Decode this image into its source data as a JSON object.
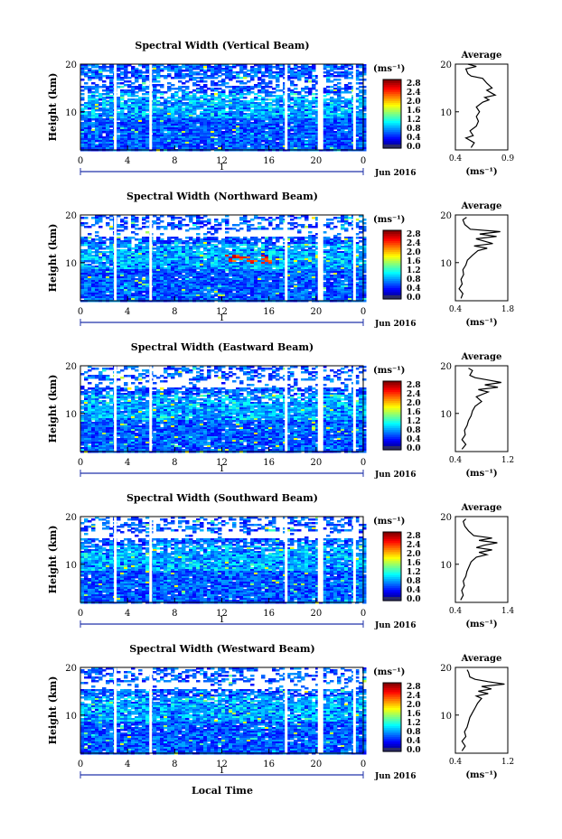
{
  "shared": {
    "ylabel": "Height (km)",
    "xlabel": "Local Time",
    "x_ticks": [
      "0",
      "4",
      "8",
      "12",
      "16",
      "20",
      "0"
    ],
    "day_label": "1",
    "month_label": "Jun 2016",
    "colorbar_unit": "(ms⁻¹)",
    "colorbar_ticks": [
      "2.8",
      "2.4",
      "2.0",
      "1.6",
      "1.2",
      "0.8",
      "0.4",
      "0.0"
    ],
    "avg_title": "Average",
    "avg_unit": "(ms⁻¹)",
    "gap_hours": [
      3,
      6,
      17.5,
      20.3,
      23.3
    ]
  },
  "chart_data": [
    {
      "type": "heatmap",
      "title": "Spectral Width (Vertical Beam)",
      "x_range_hours": [
        0,
        24
      ],
      "ylim_km": [
        2,
        20
      ],
      "y_ticks": [
        "20",
        "10"
      ],
      "clim": [
        0,
        3.0
      ],
      "avg_profile": {
        "type": "line",
        "title": "Average",
        "xlim": [
          0.4,
          0.9
        ],
        "x_ticks": [
          "0.4",
          "0.9"
        ],
        "y_ticks": [
          "20",
          "10"
        ],
        "height_km": [
          2.5,
          3.5,
          4.5,
          5,
          6,
          7,
          8,
          9,
          10,
          11,
          12,
          12.5,
          13,
          13.5,
          14,
          14.5,
          15,
          16,
          17,
          17.5,
          18,
          19,
          19.5,
          20
        ],
        "width_ms": [
          0.55,
          0.58,
          0.5,
          0.57,
          0.54,
          0.6,
          0.62,
          0.6,
          0.63,
          0.6,
          0.66,
          0.72,
          0.68,
          0.78,
          0.74,
          0.7,
          0.75,
          0.7,
          0.66,
          0.55,
          0.52,
          0.5,
          0.6,
          0.52
        ]
      }
    },
    {
      "type": "heatmap",
      "title": "Spectral Width (Northward Beam)",
      "x_range_hours": [
        0,
        24
      ],
      "ylim_km": [
        2,
        20
      ],
      "y_ticks": [
        "20",
        "10"
      ],
      "clim": [
        0,
        3.0
      ],
      "avg_profile": {
        "type": "line",
        "title": "Average",
        "xlim": [
          0.4,
          1.8
        ],
        "x_ticks": [
          "0.4",
          "1.8"
        ],
        "y_ticks": [
          "20",
          "10"
        ],
        "height_km": [
          2.5,
          3.5,
          4.5,
          5.5,
          6.5,
          7.5,
          8.5,
          9.5,
          10.5,
          11.5,
          12.5,
          13,
          13.5,
          14,
          15,
          15.5,
          16,
          16.5,
          17,
          18,
          19,
          19.5
        ],
        "width_ms": [
          0.55,
          0.6,
          0.5,
          0.58,
          0.55,
          0.62,
          0.6,
          0.68,
          0.72,
          0.85,
          1.0,
          1.25,
          0.9,
          1.4,
          0.95,
          1.5,
          1.05,
          1.6,
          0.8,
          0.65,
          0.6,
          0.7
        ]
      }
    },
    {
      "type": "heatmap",
      "title": "Spectral Width (Eastward Beam)",
      "x_range_hours": [
        0,
        24
      ],
      "ylim_km": [
        2,
        20
      ],
      "y_ticks": [
        "20",
        "10"
      ],
      "clim": [
        0,
        3.0
      ],
      "avg_profile": {
        "type": "line",
        "title": "Average",
        "xlim": [
          0.4,
          1.2
        ],
        "x_ticks": [
          "0.4",
          "1.2"
        ],
        "y_ticks": [
          "20",
          "10"
        ],
        "height_km": [
          2.5,
          3.5,
          4.5,
          5.5,
          6.5,
          7.5,
          8.5,
          9.5,
          10.5,
          11.5,
          12.5,
          13.5,
          14.5,
          15,
          15.5,
          16,
          16.5,
          17,
          17.5,
          18,
          19,
          19.5
        ],
        "width_ms": [
          0.5,
          0.56,
          0.5,
          0.55,
          0.54,
          0.58,
          0.6,
          0.64,
          0.66,
          0.7,
          0.8,
          0.72,
          0.9,
          0.75,
          1.05,
          0.85,
          1.1,
          0.9,
          0.7,
          0.62,
          0.66,
          0.6
        ]
      }
    },
    {
      "type": "heatmap",
      "title": "Spectral Width (Southward Beam)",
      "x_range_hours": [
        0,
        24
      ],
      "ylim_km": [
        2,
        20
      ],
      "y_ticks": [
        "20",
        "10"
      ],
      "clim": [
        0,
        3.0
      ],
      "avg_profile": {
        "type": "line",
        "title": "Average",
        "xlim": [
          0.4,
          1.4
        ],
        "x_ticks": [
          "0.4",
          "1.4"
        ],
        "y_ticks": [
          "20",
          "10"
        ],
        "height_km": [
          2.5,
          3.5,
          4.5,
          5.5,
          6.5,
          7.5,
          8.5,
          9.5,
          10.5,
          11.5,
          12,
          12.5,
          13,
          13.5,
          14,
          14.5,
          15,
          15.5,
          16,
          17,
          18,
          19,
          19.5
        ],
        "width_ms": [
          0.5,
          0.55,
          0.52,
          0.57,
          0.55,
          0.6,
          0.62,
          0.66,
          0.7,
          0.8,
          1.0,
          0.85,
          1.1,
          0.8,
          0.95,
          1.2,
          0.85,
          1.1,
          0.75,
          0.65,
          0.58,
          0.55,
          0.6
        ]
      }
    },
    {
      "type": "heatmap",
      "title": "Spectral Width (Westward Beam)",
      "x_range_hours": [
        0,
        24
      ],
      "ylim_km": [
        2,
        20
      ],
      "y_ticks": [
        "20",
        "10"
      ],
      "clim": [
        0,
        3.0
      ],
      "avg_profile": {
        "type": "line",
        "title": "Average",
        "xlim": [
          0.4,
          1.2
        ],
        "x_ticks": [
          "0.4",
          "1.2"
        ],
        "y_ticks": [
          "20",
          "10"
        ],
        "height_km": [
          2.5,
          3.5,
          4.5,
          5.5,
          6.5,
          7.5,
          8.5,
          9.5,
          10.5,
          11.5,
          12.5,
          13.5,
          14,
          14.5,
          15,
          15.5,
          16,
          16.5,
          17,
          17.5,
          18,
          19,
          19.5
        ],
        "width_ms": [
          0.5,
          0.55,
          0.5,
          0.56,
          0.54,
          0.58,
          0.6,
          0.62,
          0.66,
          0.7,
          0.74,
          0.8,
          0.72,
          0.9,
          0.75,
          0.95,
          0.8,
          1.15,
          0.9,
          0.7,
          0.62,
          0.6,
          0.58
        ]
      }
    }
  ]
}
